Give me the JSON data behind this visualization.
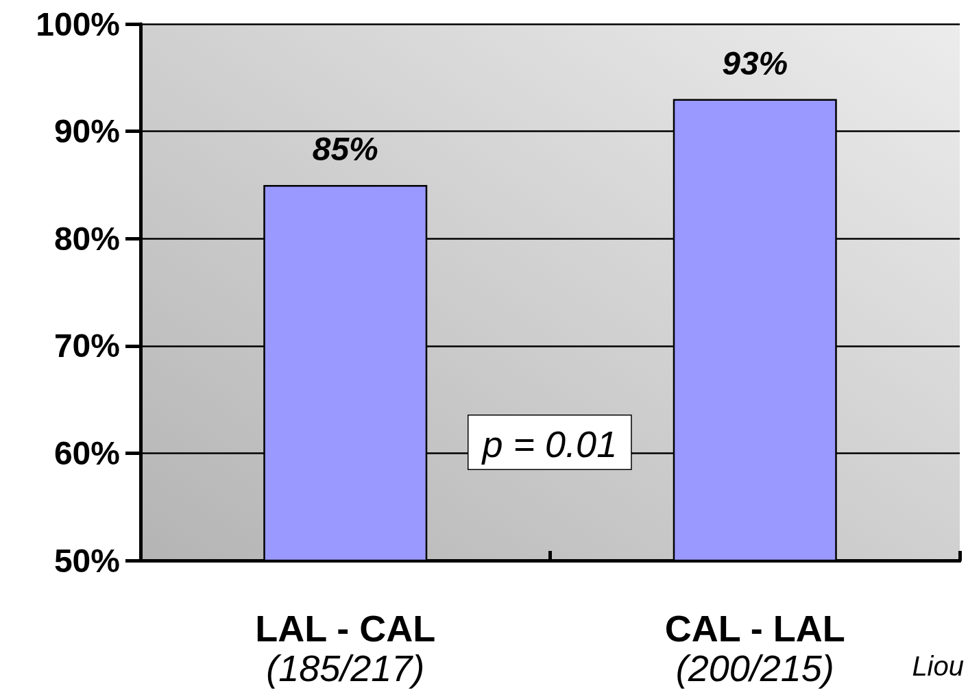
{
  "chart_data": {
    "type": "bar",
    "categories": [
      "LAL - CAL\n(185/217)",
      "CAL - LAL\n(200/215)"
    ],
    "values": [
      85,
      93
    ],
    "color": "#9999ff",
    "ylim": [
      50,
      100
    ],
    "yticks": [
      {
        "value": 50,
        "label": "50%"
      },
      {
        "value": 60,
        "label": "60%"
      },
      {
        "value": 70,
        "label": "70%"
      },
      {
        "value": 80,
        "label": "80%"
      },
      {
        "value": 90,
        "label": "90%"
      },
      {
        "value": 100,
        "label": "100%"
      }
    ],
    "grid": "y",
    "value_labels": [
      "85%",
      "93%"
    ],
    "annotations": [
      "p = 0.01",
      "Liou"
    ]
  }
}
